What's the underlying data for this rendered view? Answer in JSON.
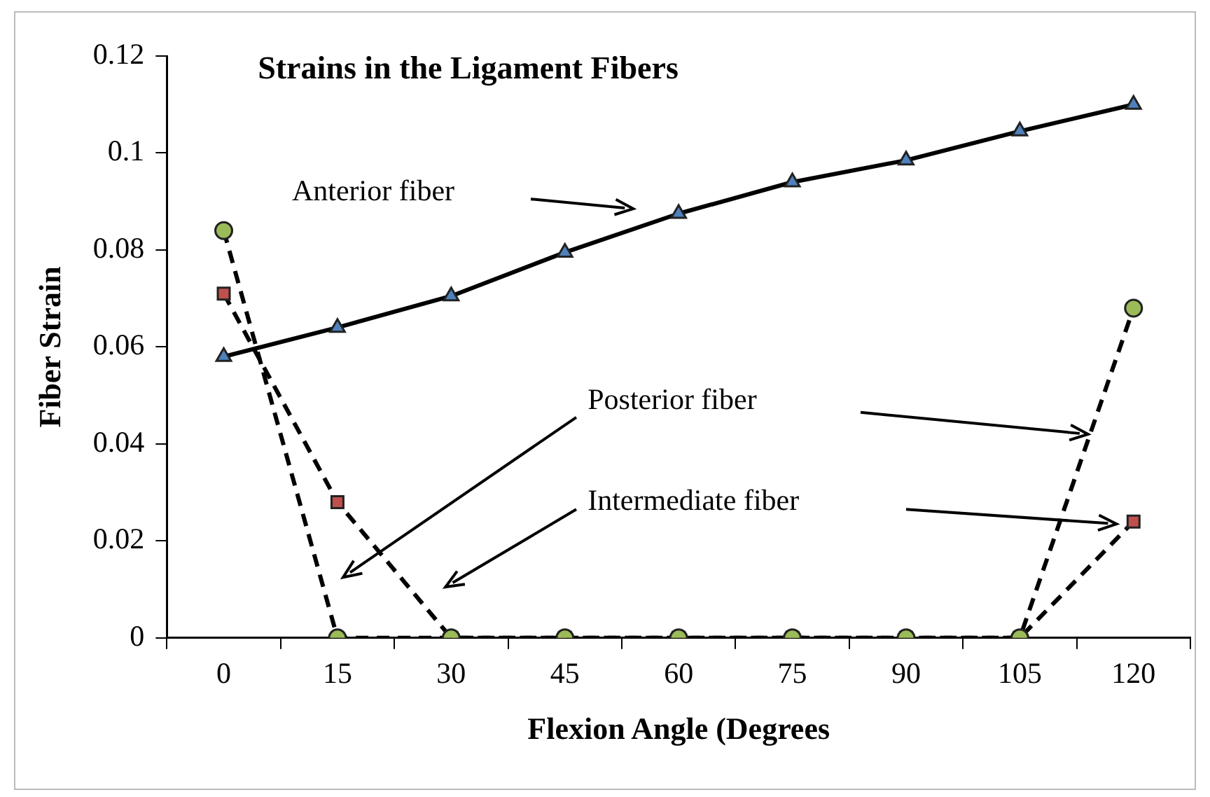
{
  "chart_data": {
    "type": "line",
    "title": "Strains in the Ligament Fibers",
    "xlabel": "Flexion Angle (Degrees",
    "ylabel": "Fiber Strain",
    "categories": [
      "0",
      "15",
      "30",
      "45",
      "60",
      "75",
      "90",
      "105",
      "120"
    ],
    "series": [
      {
        "color": "#4f81bd",
        "marker": "triangle",
        "line_style": "solid",
        "values": [
          0.058,
          0.064,
          0.0705,
          0.0795,
          0.0875,
          0.094,
          0.0985,
          0.1045,
          0.11
        ]
      },
      {
        "color": "#9bbb59",
        "marker": "circle",
        "line_style": "dashed",
        "values": [
          0.084,
          0,
          0,
          0,
          0,
          0,
          0,
          0,
          0.068
        ]
      },
      {
        "color": "#c0504d",
        "marker": "square",
        "line_style": "dashed",
        "values": [
          0.071,
          0.028,
          0,
          0,
          0,
          0,
          0,
          0,
          0.024
        ]
      }
    ],
    "ylim": [
      0,
      0.12
    ],
    "yticks": [
      0,
      0.02,
      0.04,
      0.06,
      0.08,
      0.1,
      0.12
    ],
    "grid": false,
    "legend": false,
    "annotations": [
      "Anterior fiber",
      "Posterior fiber",
      "Intermediate fiber"
    ]
  }
}
